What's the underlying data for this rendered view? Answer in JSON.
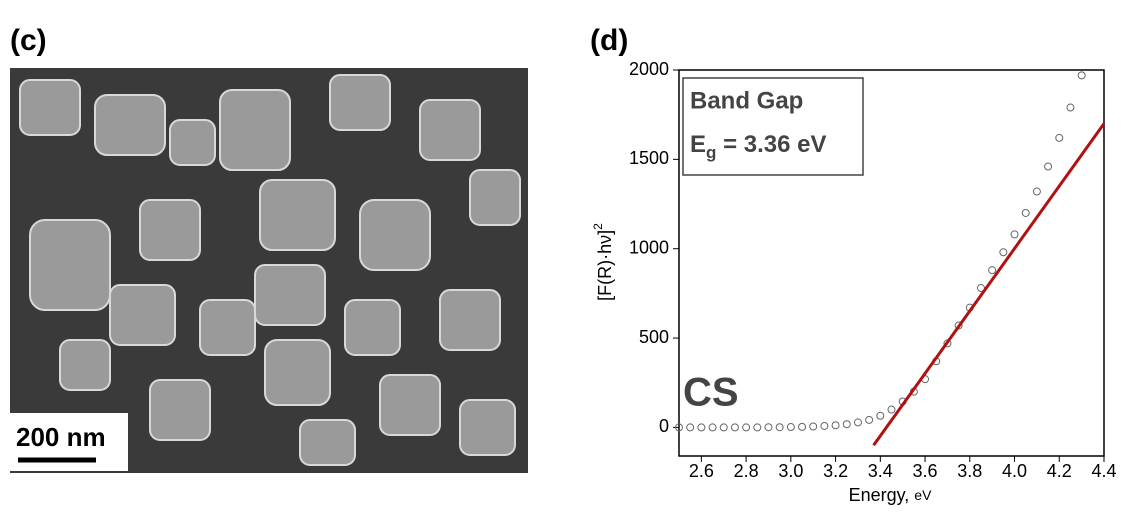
{
  "image_panel": {
    "label": "(c)",
    "scale_bar": "200 nm"
  },
  "chart_data": {
    "type": "scatter",
    "panel_label": "(d)",
    "xlabel": "Energy, ",
    "xlabel_unit": "eV",
    "ylabel": "[F(R)·hν]",
    "ylabel_superscript": "2",
    "annotation": {
      "title": "Band Gap",
      "symbol": "E",
      "subscript": "g",
      "text": " = 3.36 eV"
    },
    "sample_label": "CS",
    "xlim": [
      2.5,
      4.4
    ],
    "xticks": [
      2.6,
      2.8,
      {
        "value": 3,
        "label": "3.0"
      },
      3.2,
      3.4,
      3.6,
      3.8,
      {
        "value": 4,
        "label": "4.0"
      },
      4.2,
      4.4
    ],
    "ylim": [
      -160,
      2000
    ],
    "yticks": [
      0,
      500,
      1000,
      1500,
      2000
    ],
    "series": [
      {
        "type": "scatter",
        "color": "#666666",
        "x": [
          2.5,
          2.55,
          2.6,
          2.65,
          2.7,
          2.75,
          2.8,
          2.85,
          2.9,
          2.95,
          3.0,
          3.05,
          3.1,
          3.15,
          3.2,
          3.25,
          3.3,
          3.35,
          3.4,
          3.45,
          3.5,
          3.55,
          3.6,
          3.65,
          3.7,
          3.75,
          3.8,
          3.85,
          3.9,
          3.95,
          4.0,
          4.05,
          4.1,
          4.15,
          4.2,
          4.25,
          4.3
        ],
        "values": [
          0,
          0,
          0,
          0,
          0,
          0,
          0,
          0,
          1,
          1,
          2,
          3,
          5,
          8,
          12,
          18,
          28,
          42,
          65,
          100,
          145,
          200,
          270,
          370,
          470,
          570,
          670,
          780,
          880,
          980,
          1080,
          1200,
          1320,
          1460,
          1620,
          1790,
          1970
        ]
      },
      {
        "type": "line",
        "color": "#b01010",
        "x": [
          3.37,
          4.4
        ],
        "values": [
          -100,
          1700
        ]
      }
    ]
  }
}
